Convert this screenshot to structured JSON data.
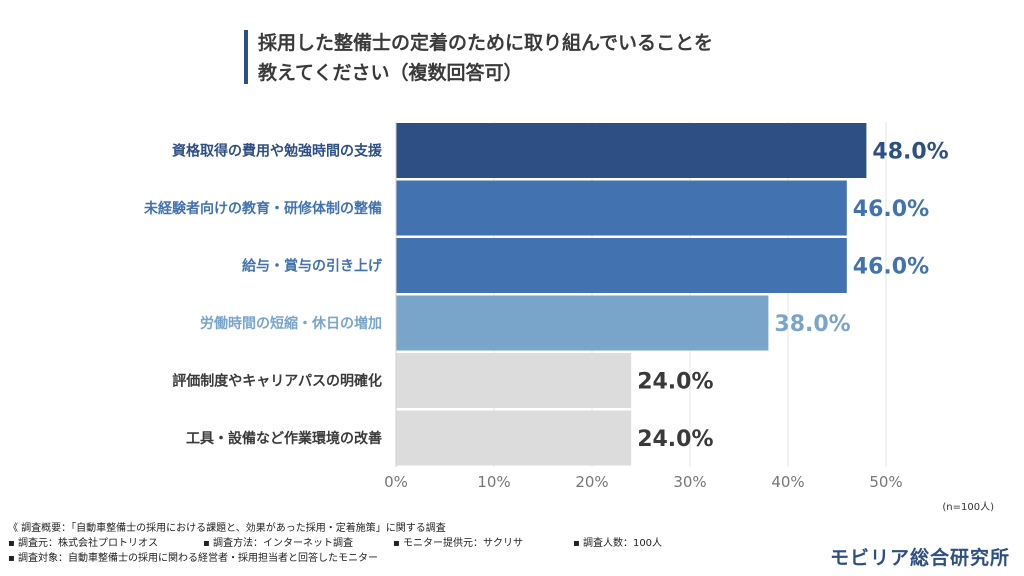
{
  "title_line1": "採用した整備士の定着のために取り組んでいることを",
  "title_line2": "教えてください（複数回答可）",
  "sample_note": "(n=100人)",
  "chart_data": {
    "type": "bar",
    "orientation": "horizontal",
    "categories": [
      "資格取得の費用や勉強時間の支援",
      "未経験者向けの教育・研修体制の整備",
      "給与・賞与の引き上げ",
      "労働時間の短縮・休日の増加",
      "評価制度やキャリアパスの明確化",
      "工具・設備など作業環境の改善"
    ],
    "values": [
      48.0,
      46.0,
      46.0,
      38.0,
      24.0,
      24.0
    ],
    "value_labels": [
      "48.0%",
      "46.0%",
      "46.0%",
      "38.0%",
      "24.0%",
      "24.0%"
    ],
    "bar_colors": [
      "#2e4f84",
      "#4273b0",
      "#4273b0",
      "#7aa5ca",
      "#dcdcdc",
      "#dcdcdc"
    ],
    "label_colors": [
      "#2e4f84",
      "#4273b0",
      "#4273b0",
      "#7aa5ca",
      "#3a3a3a",
      "#3a3a3a"
    ],
    "xticks": [
      "0%",
      "10%",
      "20%",
      "30%",
      "40%",
      "50%"
    ],
    "xlim": [
      0,
      50
    ],
    "grid": true,
    "title": "採用した整備士の定着のために取り組んでいることを教えてください（複数回答可）"
  },
  "footer": {
    "line1": "《 調査概要：「自動車整備士の採用における課題と、効果があった採用・定着施策」に関する調査",
    "line2_items": [
      "▪ 調査元：株式会社プロトリオス",
      "▪ 調査方法：インターネット調査",
      "▪ モニター提供元：サクリサ",
      "▪ 調査人数：100人"
    ],
    "line3": "▪ 調査対象：自動車整備士の採用に関わる経営者・採用担当者と回答したモニター"
  },
  "logo_text": "モビリア総合研究所"
}
